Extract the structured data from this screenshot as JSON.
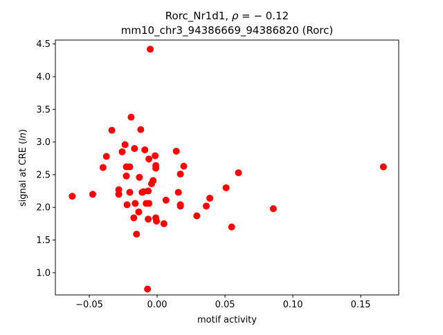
{
  "chart_data": {
    "type": "scatter",
    "title_line1_prefix": "Rorc_Nr1d1, ",
    "title_line1_rho": "ρ",
    "title_line1_suffix": " = − 0.12",
    "title_line2": "mm10_chr3_94386669_94386820 (Rorc)",
    "xlabel": "motif activity",
    "ylabel_prefix": "signal at CRE (",
    "ylabel_italic": "ln",
    "ylabel_suffix": ")",
    "xlim": [
      -0.075,
      0.178
    ],
    "ylim": [
      0.66,
      4.56
    ],
    "xticks": [
      -0.05,
      0.0,
      0.05,
      0.1,
      0.15
    ],
    "xtick_labels": [
      "−0.05",
      "0.00",
      "0.05",
      "0.10",
      "0.15"
    ],
    "yticks": [
      1.0,
      1.5,
      2.0,
      2.5,
      3.0,
      3.5,
      4.0,
      4.5
    ],
    "ytick_labels": [
      "1.0",
      "1.5",
      "2.0",
      "2.5",
      "3.0",
      "3.5",
      "4.0",
      "4.5"
    ],
    "marker_color": "#ff0000",
    "grid": false,
    "points": [
      {
        "x": -0.0626,
        "y": 2.17
      },
      {
        "x": -0.0475,
        "y": 2.2
      },
      {
        "x": -0.0399,
        "y": 2.61
      },
      {
        "x": -0.0374,
        "y": 2.78
      },
      {
        "x": -0.0334,
        "y": 3.18
      },
      {
        "x": -0.0283,
        "y": 2.27
      },
      {
        "x": -0.0283,
        "y": 2.2
      },
      {
        "x": -0.0258,
        "y": 2.85
      },
      {
        "x": -0.0237,
        "y": 2.96
      },
      {
        "x": -0.0227,
        "y": 2.62
      },
      {
        "x": -0.0227,
        "y": 2.48
      },
      {
        "x": -0.0222,
        "y": 2.04
      },
      {
        "x": -0.0202,
        "y": 2.23
      },
      {
        "x": -0.0202,
        "y": 2.62
      },
      {
        "x": -0.0192,
        "y": 3.38
      },
      {
        "x": -0.0172,
        "y": 1.84
      },
      {
        "x": -0.0167,
        "y": 2.9
      },
      {
        "x": -0.0162,
        "y": 2.06
      },
      {
        "x": -0.0152,
        "y": 1.59
      },
      {
        "x": -0.0136,
        "y": 1.93
      },
      {
        "x": -0.0131,
        "y": 2.46
      },
      {
        "x": -0.0121,
        "y": 3.19
      },
      {
        "x": -0.0111,
        "y": 2.23
      },
      {
        "x": -0.0101,
        "y": 2.24
      },
      {
        "x": -0.0091,
        "y": 2.88
      },
      {
        "x": -0.0081,
        "y": 2.06
      },
      {
        "x": -0.0071,
        "y": 0.75
      },
      {
        "x": -0.0066,
        "y": 1.82
      },
      {
        "x": -0.0066,
        "y": 2.25
      },
      {
        "x": -0.0061,
        "y": 2.74
      },
      {
        "x": -0.0061,
        "y": 2.06
      },
      {
        "x": -0.0051,
        "y": 4.42
      },
      {
        "x": -0.0041,
        "y": 2.36
      },
      {
        "x": -0.003,
        "y": 2.41
      },
      {
        "x": -0.0015,
        "y": 2.79
      },
      {
        "x": -0.001,
        "y": 2.64
      },
      {
        "x": -0.001,
        "y": 2.6
      },
      {
        "x": -0.001,
        "y": 1.84
      },
      {
        "x": -0.0005,
        "y": 1.79
      },
      {
        "x": 0.005,
        "y": 1.75
      },
      {
        "x": 0.0065,
        "y": 2.11
      },
      {
        "x": 0.0141,
        "y": 2.86
      },
      {
        "x": 0.0156,
        "y": 2.23
      },
      {
        "x": 0.0171,
        "y": 2.51
      },
      {
        "x": 0.0171,
        "y": 2.04
      },
      {
        "x": 0.0171,
        "y": 2.02
      },
      {
        "x": 0.0196,
        "y": 2.63
      },
      {
        "x": 0.0292,
        "y": 1.87
      },
      {
        "x": 0.0362,
        "y": 2.02
      },
      {
        "x": 0.0388,
        "y": 2.14
      },
      {
        "x": 0.0508,
        "y": 2.3
      },
      {
        "x": 0.0549,
        "y": 1.7
      },
      {
        "x": 0.0599,
        "y": 2.53
      },
      {
        "x": 0.0856,
        "y": 1.98
      },
      {
        "x": 0.1667,
        "y": 2.62
      }
    ]
  }
}
